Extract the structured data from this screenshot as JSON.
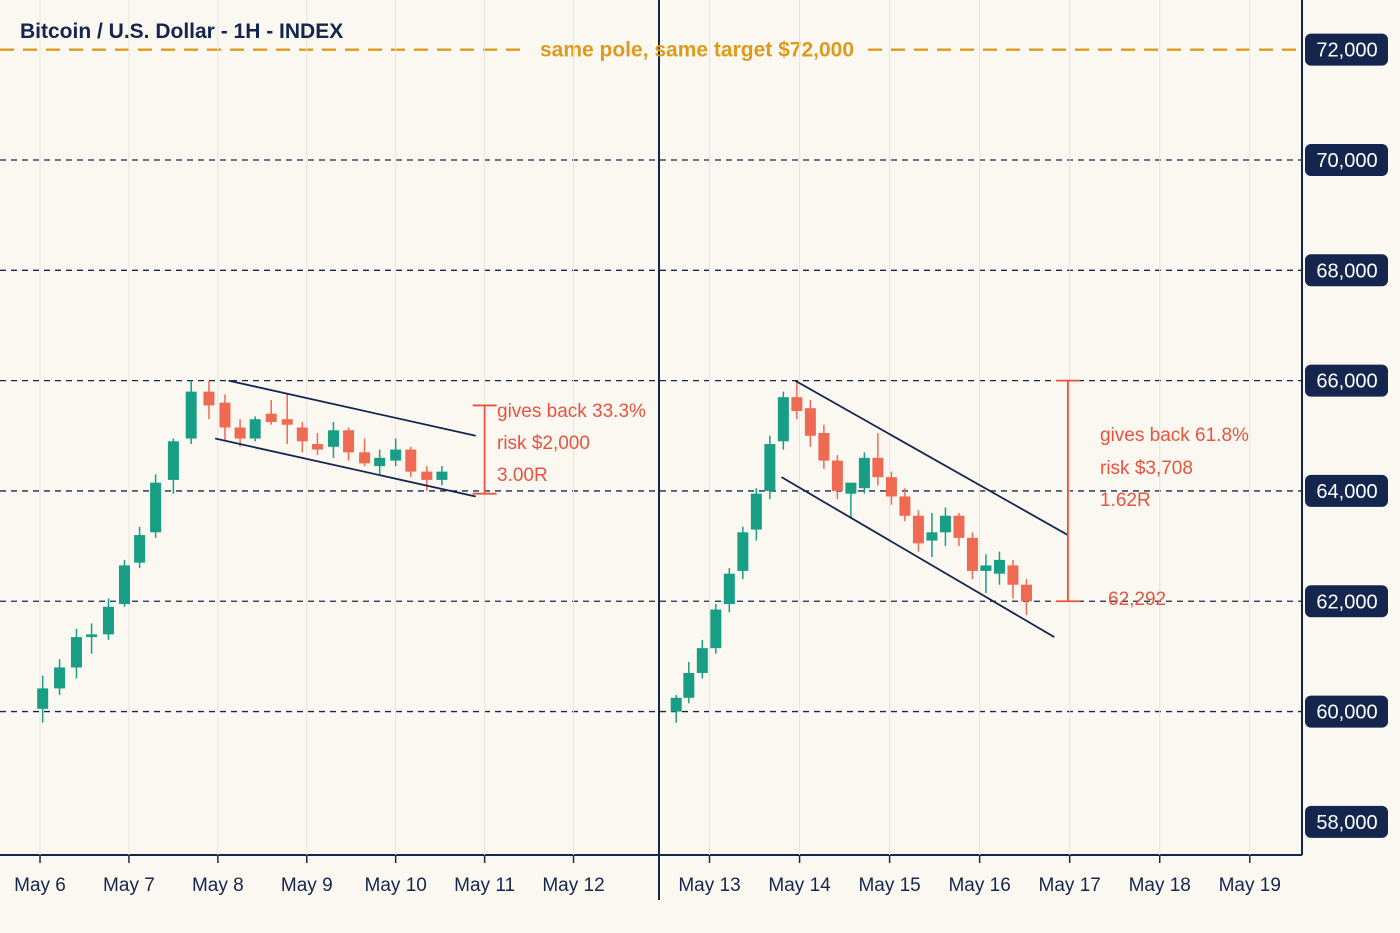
{
  "colors": {
    "background": "#fbf8f2",
    "navy": "#14264d",
    "up": "#179e85",
    "down": "#ef6a52",
    "annotation": "#e8533d",
    "target": "#dc9b1c",
    "label_text": "#ffffff"
  },
  "chart_data": {
    "type": "candlestick",
    "title": "Bitcoin / U.S. Dollar - 1H - INDEX",
    "y_ticks": [
      58000,
      60000,
      62000,
      64000,
      66000,
      68000,
      70000
    ],
    "ylim": [
      57400,
      72900
    ],
    "grid_levels": [
      60000,
      62000,
      64000,
      66000,
      68000,
      70000
    ],
    "target": {
      "value": 72000,
      "label": "same pole, same target $72,000",
      "axis_label": "72,000"
    },
    "panels": [
      {
        "x_axis": {
          "ticks": [
            {
              "label": "May 6",
              "day": 6
            },
            {
              "label": "May 7",
              "day": 7
            },
            {
              "label": "May 8",
              "day": 8
            },
            {
              "label": "May 9",
              "day": 9
            },
            {
              "label": "May 10",
              "day": 10
            },
            {
              "label": "May 11",
              "day": 11
            },
            {
              "label": "May 12",
              "day": 12
            }
          ],
          "range": [
            5.55,
            12.95
          ]
        },
        "candles": [
          {
            "d": 6.03,
            "o": 60050,
            "h": 60650,
            "l": 59800,
            "c": 60420
          },
          {
            "d": 6.22,
            "o": 60420,
            "h": 60950,
            "l": 60300,
            "c": 60800
          },
          {
            "d": 6.41,
            "o": 60800,
            "h": 61500,
            "l": 60600,
            "c": 61350
          },
          {
            "d": 6.58,
            "o": 61350,
            "h": 61600,
            "l": 61050,
            "c": 61400
          },
          {
            "d": 6.77,
            "o": 61400,
            "h": 62050,
            "l": 61300,
            "c": 61900
          },
          {
            "d": 6.95,
            "o": 61950,
            "h": 62750,
            "l": 61900,
            "c": 62650
          },
          {
            "d": 7.12,
            "o": 62700,
            "h": 63350,
            "l": 62600,
            "c": 63200
          },
          {
            "d": 7.3,
            "o": 63250,
            "h": 64300,
            "l": 63150,
            "c": 64150
          },
          {
            "d": 7.5,
            "o": 64200,
            "h": 64950,
            "l": 63950,
            "c": 64900
          },
          {
            "d": 7.7,
            "o": 64950,
            "h": 66000,
            "l": 64850,
            "c": 65800
          },
          {
            "d": 7.9,
            "o": 65800,
            "h": 66000,
            "l": 65300,
            "c": 65550
          },
          {
            "d": 8.08,
            "o": 65600,
            "h": 65750,
            "l": 64900,
            "c": 65150
          },
          {
            "d": 8.25,
            "o": 65150,
            "h": 65300,
            "l": 64800,
            "c": 64950
          },
          {
            "d": 8.42,
            "o": 64950,
            "h": 65350,
            "l": 64900,
            "c": 65300
          },
          {
            "d": 8.6,
            "o": 65400,
            "h": 65650,
            "l": 65200,
            "c": 65250
          },
          {
            "d": 8.78,
            "o": 65300,
            "h": 65750,
            "l": 64850,
            "c": 65200
          },
          {
            "d": 8.95,
            "o": 65150,
            "h": 65250,
            "l": 64700,
            "c": 64900
          },
          {
            "d": 9.12,
            "o": 64850,
            "h": 65050,
            "l": 64650,
            "c": 64750
          },
          {
            "d": 9.3,
            "o": 64800,
            "h": 65250,
            "l": 64600,
            "c": 65100
          },
          {
            "d": 9.47,
            "o": 65100,
            "h": 65150,
            "l": 64550,
            "c": 64700
          },
          {
            "d": 9.65,
            "o": 64700,
            "h": 64950,
            "l": 64450,
            "c": 64500
          },
          {
            "d": 9.82,
            "o": 64450,
            "h": 64750,
            "l": 64300,
            "c": 64600
          },
          {
            "d": 10.0,
            "o": 64550,
            "h": 64950,
            "l": 64450,
            "c": 64750
          },
          {
            "d": 10.17,
            "o": 64750,
            "h": 64800,
            "l": 64250,
            "c": 64350
          },
          {
            "d": 10.35,
            "o": 64350,
            "h": 64450,
            "l": 64000,
            "c": 64200
          },
          {
            "d": 10.52,
            "o": 64200,
            "h": 64450,
            "l": 64100,
            "c": 64350
          }
        ],
        "channel": [
          {
            "d1": 8.12,
            "v1": 66000,
            "d2": 10.9,
            "v2": 65000
          },
          {
            "d1": 7.97,
            "v1": 64950,
            "d2": 10.9,
            "v2": 63900
          }
        ],
        "measure": {
          "d": 11.0,
          "top": 65550,
          "bottom": 63950
        },
        "annotation": {
          "lines": [
            "gives back 33.3%",
            "risk $2,000",
            "3.00R"
          ]
        }
      },
      {
        "x_axis": {
          "ticks": [
            {
              "label": "May 13",
              "day": 13
            },
            {
              "label": "May 14",
              "day": 14
            },
            {
              "label": "May 15",
              "day": 15
            },
            {
              "label": "May 16",
              "day": 16
            },
            {
              "label": "May 17",
              "day": 17
            },
            {
              "label": "May 18",
              "day": 18
            },
            {
              "label": "May 19",
              "day": 19
            }
          ],
          "range": [
            12.45,
            19.58
          ]
        },
        "candles": [
          {
            "d": 12.63,
            "o": 60000,
            "h": 60300,
            "l": 59800,
            "c": 60250
          },
          {
            "d": 12.77,
            "o": 60250,
            "h": 60900,
            "l": 60150,
            "c": 60700
          },
          {
            "d": 12.92,
            "o": 60700,
            "h": 61300,
            "l": 60600,
            "c": 61150
          },
          {
            "d": 13.07,
            "o": 61150,
            "h": 61950,
            "l": 61050,
            "c": 61850
          },
          {
            "d": 13.22,
            "o": 61950,
            "h": 62600,
            "l": 61800,
            "c": 62500
          },
          {
            "d": 13.37,
            "o": 62550,
            "h": 63350,
            "l": 62400,
            "c": 63250
          },
          {
            "d": 13.52,
            "o": 63300,
            "h": 64050,
            "l": 63100,
            "c": 63950
          },
          {
            "d": 13.67,
            "o": 64000,
            "h": 65000,
            "l": 63850,
            "c": 64850
          },
          {
            "d": 13.82,
            "o": 64900,
            "h": 65800,
            "l": 64750,
            "c": 65700
          },
          {
            "d": 13.97,
            "o": 65700,
            "h": 66000,
            "l": 65300,
            "c": 65450
          },
          {
            "d": 14.12,
            "o": 65500,
            "h": 65650,
            "l": 64800,
            "c": 65000
          },
          {
            "d": 14.27,
            "o": 65050,
            "h": 65200,
            "l": 64400,
            "c": 64550
          },
          {
            "d": 14.42,
            "o": 64550,
            "h": 64650,
            "l": 63850,
            "c": 64000
          },
          {
            "d": 14.57,
            "o": 63950,
            "h": 64150,
            "l": 63500,
            "c": 64150
          },
          {
            "d": 14.72,
            "o": 64050,
            "h": 64700,
            "l": 63950,
            "c": 64600
          },
          {
            "d": 14.87,
            "o": 64600,
            "h": 65050,
            "l": 64100,
            "c": 64250
          },
          {
            "d": 15.02,
            "o": 64250,
            "h": 64350,
            "l": 63750,
            "c": 63900
          },
          {
            "d": 15.17,
            "o": 63900,
            "h": 64050,
            "l": 63450,
            "c": 63550
          },
          {
            "d": 15.32,
            "o": 63550,
            "h": 63650,
            "l": 62900,
            "c": 63050
          },
          {
            "d": 15.47,
            "o": 63100,
            "h": 63600,
            "l": 62800,
            "c": 63250
          },
          {
            "d": 15.62,
            "o": 63250,
            "h": 63700,
            "l": 63000,
            "c": 63550
          },
          {
            "d": 15.77,
            "o": 63550,
            "h": 63600,
            "l": 63000,
            "c": 63150
          },
          {
            "d": 15.92,
            "o": 63150,
            "h": 63250,
            "l": 62400,
            "c": 62550
          },
          {
            "d": 16.07,
            "o": 62550,
            "h": 62850,
            "l": 62150,
            "c": 62650
          },
          {
            "d": 16.22,
            "o": 62500,
            "h": 62900,
            "l": 62300,
            "c": 62750
          },
          {
            "d": 16.37,
            "o": 62650,
            "h": 62750,
            "l": 62050,
            "c": 62300
          },
          {
            "d": 16.52,
            "o": 62300,
            "h": 62400,
            "l": 61750,
            "c": 62000
          }
        ],
        "channel": [
          {
            "d1": 13.95,
            "v1": 66000,
            "d2": 16.98,
            "v2": 63200
          },
          {
            "d1": 13.8,
            "v1": 64250,
            "d2": 16.83,
            "v2": 61350
          }
        ],
        "measure": {
          "d": 16.98,
          "top": 66000,
          "bottom": 62000
        },
        "annotation": {
          "lines": [
            "gives back 61.8%",
            "risk $3,708",
            "1.62R"
          ],
          "level": "62,292"
        }
      }
    ]
  }
}
